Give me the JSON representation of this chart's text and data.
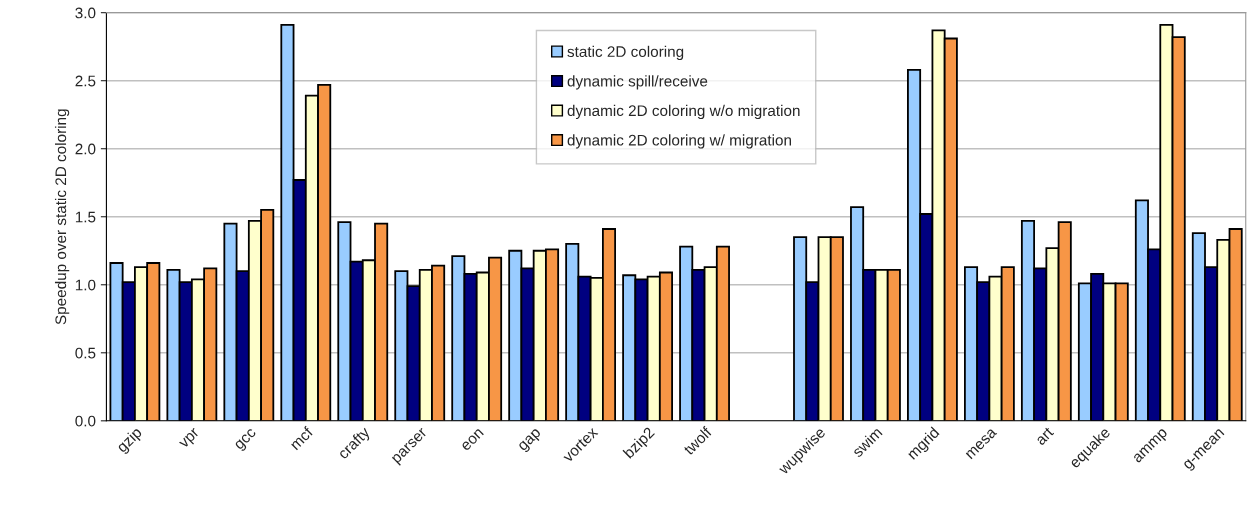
{
  "chart_data": {
    "type": "bar",
    "ylabel": "Speedup over static 2D coloring",
    "categories": [
      "gzip",
      "vpr",
      "gcc",
      "mcf",
      "crafty",
      "parser",
      "eon",
      "gap",
      "vortex",
      "bzip2",
      "twolf",
      null,
      "wupwise",
      "swim",
      "mgrid",
      "mesa",
      "art",
      "equake",
      "ammp",
      "g-mean"
    ],
    "series": [
      {
        "name": "static 2D coloring",
        "color": "#99ccff",
        "values": [
          1.16,
          1.11,
          1.45,
          2.91,
          1.46,
          1.1,
          1.21,
          1.25,
          1.3,
          1.07,
          1.28,
          null,
          1.35,
          1.57,
          2.58,
          1.13,
          1.47,
          1.01,
          1.62,
          1.38
        ]
      },
      {
        "name": "dynamic spill/receive",
        "color": "#000080",
        "values": [
          1.02,
          1.02,
          1.1,
          1.77,
          1.17,
          0.99,
          1.08,
          1.12,
          1.06,
          1.04,
          1.11,
          null,
          1.02,
          1.11,
          1.52,
          1.02,
          1.12,
          1.08,
          1.26,
          1.13
        ]
      },
      {
        "name": "dynamic 2D coloring w/o migration",
        "color": "#ffffcc",
        "values": [
          1.13,
          1.04,
          1.47,
          2.39,
          1.18,
          1.11,
          1.09,
          1.25,
          1.05,
          1.06,
          1.13,
          null,
          1.35,
          1.11,
          2.87,
          1.06,
          1.27,
          1.01,
          2.91,
          1.33
        ]
      },
      {
        "name": "dynamic 2D coloring w/ migration",
        "color": "#f79646",
        "values": [
          1.16,
          1.12,
          1.55,
          2.47,
          1.45,
          1.14,
          1.2,
          1.26,
          1.41,
          1.09,
          1.28,
          null,
          1.35,
          1.11,
          2.81,
          1.13,
          1.46,
          1.01,
          2.82,
          1.41
        ]
      }
    ],
    "ylim": [
      0,
      3
    ],
    "yticks": [
      {
        "value": 0,
        "label": "0.0"
      },
      {
        "value": 0.5,
        "label": "0.5"
      },
      {
        "value": 1,
        "label": "1.0"
      },
      {
        "value": 1.5,
        "label": "1.5"
      },
      {
        "value": 2,
        "label": "2.0"
      },
      {
        "value": 2.5,
        "label": "2.5"
      },
      {
        "value": 3,
        "label": "3.0"
      }
    ],
    "grid": "y",
    "legend": "top"
  }
}
